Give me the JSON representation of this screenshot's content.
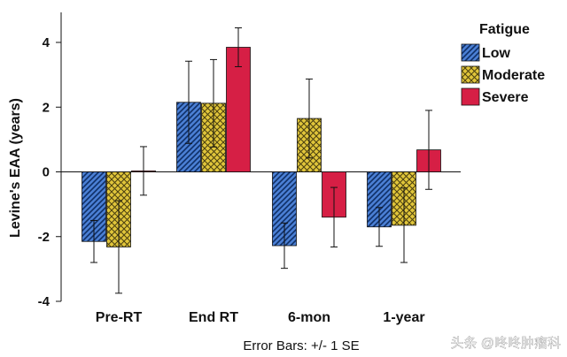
{
  "chart_data": {
    "type": "bar",
    "ylabel": "Levine's EAA (years)",
    "ylim": [
      -4,
      5
    ],
    "yticks": [
      -4,
      -2,
      0,
      2,
      4
    ],
    "categories": [
      "Pre-RT",
      "End RT",
      "6-mon",
      "1-year"
    ],
    "legend_title": "Fatigue",
    "legend_position": "right",
    "series": [
      {
        "name": "Low",
        "values": [
          -2.15,
          2.15,
          -2.28,
          -1.7
        ],
        "errors": [
          0.65,
          1.27,
          0.7,
          0.6
        ],
        "color": "#4a7fd4",
        "pattern": "diagonal-stripes"
      },
      {
        "name": "Moderate",
        "values": [
          -2.32,
          2.12,
          1.65,
          -1.65
        ],
        "errors": [
          1.43,
          1.35,
          1.22,
          1.15
        ],
        "color": "#e0c53a",
        "pattern": "crosshatch"
      },
      {
        "name": "Severe",
        "values": [
          0.03,
          3.85,
          -1.4,
          0.68
        ],
        "errors": [
          0.75,
          0.6,
          0.92,
          1.22
        ],
        "color": "#d61f45",
        "pattern": "solid"
      }
    ],
    "note": "Error Bars: +/- 1 SE"
  },
  "watermark": "头条 @咚咚肿瘤科"
}
